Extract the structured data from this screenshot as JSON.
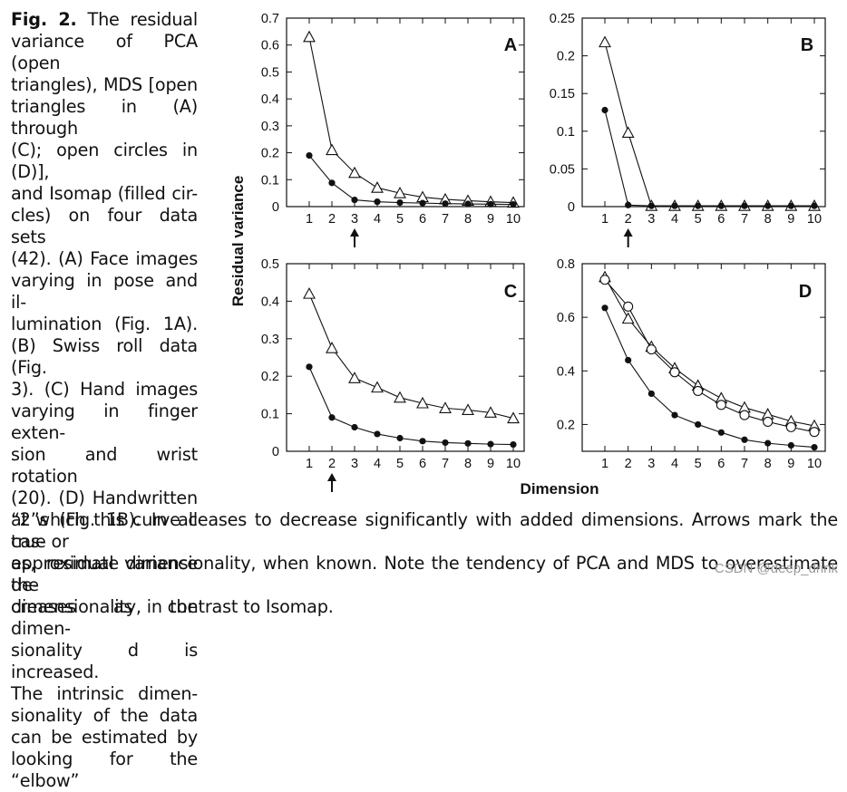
{
  "caption": {
    "side_lines": [
      "Fig. 2. The residual",
      "variance of PCA (open",
      "triangles), MDS [open",
      "triangles in (A) through",
      "(C); open circles in (D)],",
      "and Isomap (filled cir-",
      "cles) on four data sets",
      "(42). (A) Face images",
      "varying in pose and il-",
      "lumination (Fig. 1A).",
      "(B) Swiss roll data (Fig.",
      "3). (C) Hand images",
      "varying in finger exten-",
      "sion and wrist rotation",
      "(20). (D) Handwritten",
      "“2”s (Fig. 1B). In all cas-",
      "es, residual variance de-",
      "creases as the dimen-",
      "sionality d is increased.",
      "The intrinsic dimen-",
      "sionality of the data",
      "can be estimated by",
      "looking for the “elbow”"
    ],
    "bottom_lines": [
      "at which this curve ceases to decrease significantly with added dimensions. Arrows mark the true or",
      "approximate dimensionality, when known. Note the tendency of PCA and MDS to overestimate the",
      "dimensionality, in contrast to Isomap."
    ]
  },
  "watermark": "CSDN @deep_drink",
  "chart_data": [
    {
      "type": "line",
      "panel": "A",
      "ylabel": "Residual variance",
      "xlabel": "Dimension",
      "x": [
        1,
        2,
        3,
        4,
        5,
        6,
        7,
        8,
        9,
        10
      ],
      "ylim": [
        0,
        0.7
      ],
      "yticks": [
        0,
        0.1,
        0.2,
        0.3,
        0.4,
        0.5,
        0.6,
        0.7
      ],
      "ytick_labels": [
        "0",
        "0.1",
        "0.2",
        "0.3",
        "0.4",
        "0.5",
        "0.6",
        "0.7"
      ],
      "arrow_at": 3,
      "series": [
        {
          "name": "PCA / MDS (open triangles)",
          "marker": "open-triangle",
          "values": [
            0.63,
            0.21,
            0.125,
            0.07,
            0.05,
            0.035,
            0.027,
            0.022,
            0.018,
            0.015
          ]
        },
        {
          "name": "Isomap (filled circles)",
          "marker": "filled-circle",
          "values": [
            0.19,
            0.088,
            0.025,
            0.018,
            0.015,
            0.013,
            0.011,
            0.01,
            0.009,
            0.008
          ]
        }
      ]
    },
    {
      "type": "line",
      "panel": "B",
      "x": [
        1,
        2,
        3,
        4,
        5,
        6,
        7,
        8,
        9,
        10
      ],
      "ylim": [
        0,
        0.25
      ],
      "yticks": [
        0,
        0.05,
        0.1,
        0.15,
        0.2,
        0.25
      ],
      "ytick_labels": [
        "0",
        "0.05",
        "0.1",
        "0.15",
        "0.2",
        "0.25"
      ],
      "arrow_at": 2,
      "series": [
        {
          "name": "PCA / MDS (open triangles)",
          "marker": "open-triangle",
          "values": [
            0.218,
            0.098,
            0.001,
            0.001,
            0.001,
            0.001,
            0.001,
            0.001,
            0.001,
            0.001
          ]
        },
        {
          "name": "Isomap (filled circles)",
          "marker": "filled-circle",
          "values": [
            0.128,
            0.002,
            0.001,
            0.001,
            0.001,
            0.001,
            0.001,
            0.001,
            0.001,
            0.001
          ]
        }
      ]
    },
    {
      "type": "line",
      "panel": "C",
      "x": [
        1,
        2,
        3,
        4,
        5,
        6,
        7,
        8,
        9,
        10
      ],
      "ylim": [
        0,
        0.5
      ],
      "yticks": [
        0,
        0.1,
        0.2,
        0.3,
        0.4,
        0.5
      ],
      "ytick_labels": [
        "0",
        "0.1",
        "0.2",
        "0.3",
        "0.4",
        "0.5"
      ],
      "arrow_at": 2,
      "series": [
        {
          "name": "PCA / MDS (open triangles)",
          "marker": "open-triangle",
          "values": [
            0.42,
            0.275,
            0.195,
            0.17,
            0.143,
            0.128,
            0.115,
            0.11,
            0.103,
            0.088
          ]
        },
        {
          "name": "Isomap (filled circles)",
          "marker": "filled-circle",
          "values": [
            0.225,
            0.09,
            0.064,
            0.046,
            0.035,
            0.027,
            0.023,
            0.021,
            0.019,
            0.018
          ]
        }
      ]
    },
    {
      "type": "line",
      "panel": "D",
      "x": [
        1,
        2,
        3,
        4,
        5,
        6,
        7,
        8,
        9,
        10
      ],
      "ylim": [
        0.1,
        0.8
      ],
      "yticks": [
        0.2,
        0.4,
        0.6,
        0.8
      ],
      "ytick_labels": [
        "0.2",
        "0.4",
        "0.6",
        "0.8"
      ],
      "series": [
        {
          "name": "PCA (open triangles)",
          "marker": "open-triangle",
          "values": [
            0.75,
            0.595,
            0.49,
            0.41,
            0.345,
            0.298,
            0.263,
            0.238,
            0.212,
            0.195
          ]
        },
        {
          "name": "MDS (open circles)",
          "marker": "open-circle",
          "values": [
            0.74,
            0.64,
            0.48,
            0.395,
            0.325,
            0.273,
            0.235,
            0.21,
            0.19,
            0.172
          ]
        },
        {
          "name": "Isomap (filled circles)",
          "marker": "filled-circle",
          "values": [
            0.635,
            0.44,
            0.315,
            0.235,
            0.2,
            0.17,
            0.143,
            0.13,
            0.122,
            0.115
          ]
        }
      ]
    }
  ]
}
